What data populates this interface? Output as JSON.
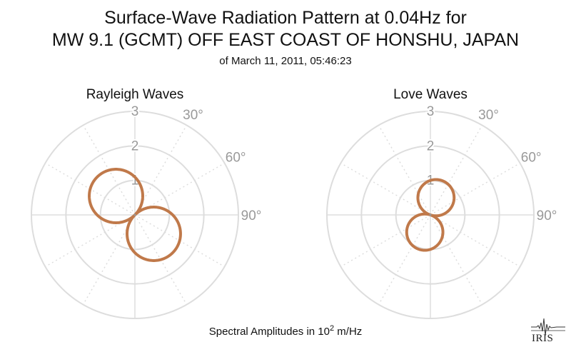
{
  "header": {
    "title_line1": "Surface-Wave Radiation Pattern at 0.04Hz for",
    "title_line2": "MW 9.1 (GCMT) OFF EAST COAST OF HONSHU, JAPAN",
    "subtitle": "of March 11, 2011, 05:46:23"
  },
  "footer": {
    "label_prefix": "Spectral Amplitudes in 10",
    "label_exp": "2",
    "label_unit": " m/Hz"
  },
  "logo": {
    "text": "IRIS"
  },
  "colors": {
    "pattern": "#c0794a",
    "grid": "#dddddd",
    "tick_text": "#999999"
  },
  "chart_data": [
    {
      "type": "polar",
      "title": "Rayleigh Waves",
      "r_range": [
        0,
        3
      ],
      "r_ticks": [
        "1",
        "2",
        "3"
      ],
      "angle_ticks": [
        "30°",
        "60°",
        "90°"
      ],
      "series_color": "#c0794a",
      "lobe_orientation_deg": 135,
      "lobes": [
        {
          "angle_deg": 135,
          "amplitude": 1.55
        },
        {
          "angle_deg": 315,
          "amplitude": 1.55
        }
      ]
    },
    {
      "type": "polar",
      "title": "Love Waves",
      "r_range": [
        0,
        3
      ],
      "r_ticks": [
        "1",
        "2",
        "3"
      ],
      "angle_ticks": [
        "30°",
        "60°",
        "90°"
      ],
      "series_color": "#c0794a",
      "lobe_orientation_deg": 18,
      "lobes": [
        {
          "angle_deg": 18,
          "amplitude": 1.05
        },
        {
          "angle_deg": 198,
          "amplitude": 1.05
        }
      ]
    }
  ]
}
